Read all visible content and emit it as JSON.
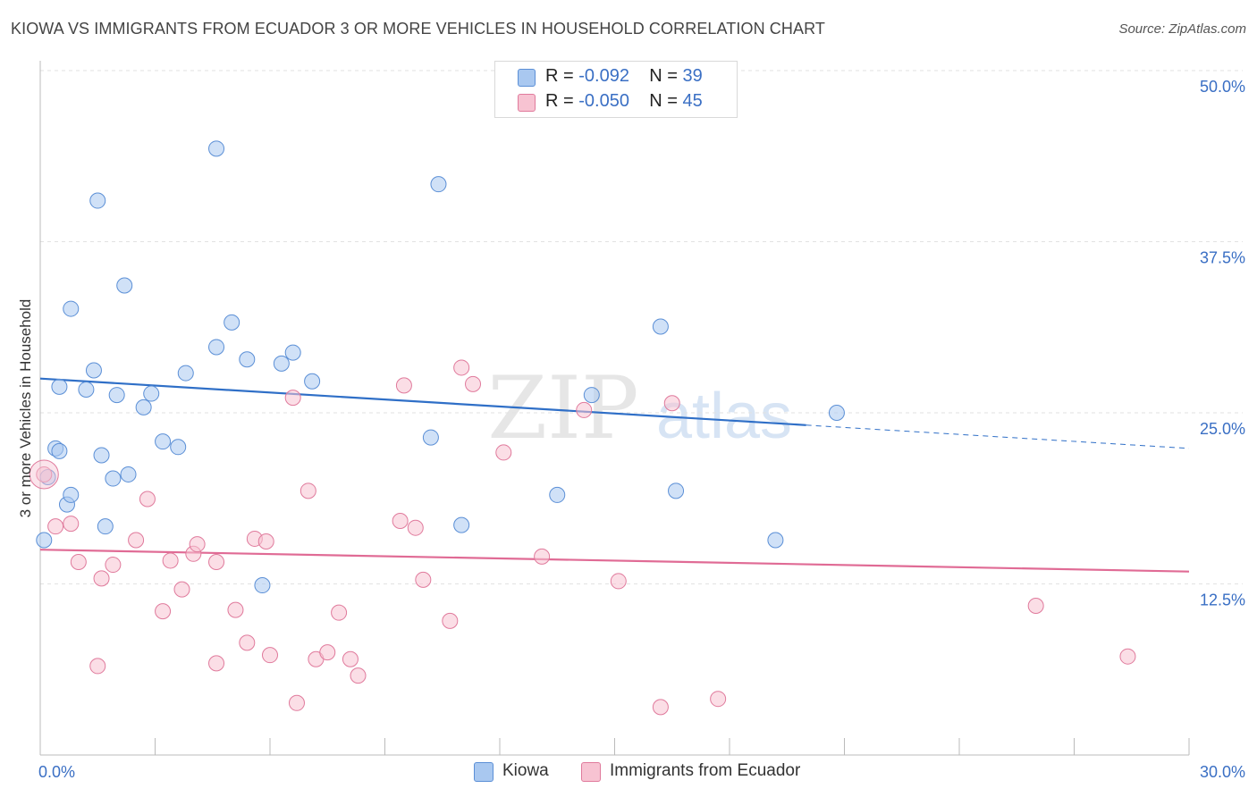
{
  "title": "KIOWA VS IMMIGRANTS FROM ECUADOR 3 OR MORE VEHICLES IN HOUSEHOLD CORRELATION CHART",
  "source": "Source: ZipAtlas.com",
  "watermark": {
    "zip": "ZIP",
    "atlas": "atlas"
  },
  "legend": {
    "rows": [
      {
        "r_label": "R =",
        "r_value": "-0.092",
        "n_label": "N =",
        "n_value": "39",
        "color": "#a9c8f0",
        "border": "#5b8fd6"
      },
      {
        "r_label": "R =",
        "r_value": "-0.050",
        "n_label": "N =",
        "n_value": "45",
        "color": "#f7c3d2",
        "border": "#e07a9c"
      }
    ]
  },
  "bottom_legend": [
    {
      "label": "Kiowa",
      "color": "#a9c8f0",
      "border": "#5b8fd6"
    },
    {
      "label": "Immigrants from Ecuador",
      "color": "#f7c3d2",
      "border": "#e07a9c"
    }
  ],
  "chart_data": {
    "type": "scatter",
    "ylabel": "3 or more Vehicles in Household",
    "xlim": [
      0,
      30
    ],
    "ylim": [
      0,
      50
    ],
    "x_tick_labels": [
      {
        "value": 0,
        "label": "0.0%"
      },
      {
        "value": 30,
        "label": "30.0%"
      }
    ],
    "y_tick_labels": [
      {
        "value": 12.5,
        "label": "12.5%"
      },
      {
        "value": 25,
        "label": "25.0%"
      },
      {
        "value": 37.5,
        "label": "37.5%"
      },
      {
        "value": 50,
        "label": "50.0%"
      }
    ],
    "grid": true,
    "series": [
      {
        "name": "Kiowa",
        "color": "#a9c8f0",
        "border": "#5b8fd6",
        "line_color": "#2f6fc7",
        "trend": {
          "x0": 0,
          "y0": 27.5,
          "x1": 20,
          "y1": 24.1,
          "dash_to_x": 30,
          "dash_to_y": 22.4
        },
        "points": [
          [
            0.1,
            15.7
          ],
          [
            0.2,
            20.3
          ],
          [
            0.4,
            22.4
          ],
          [
            0.5,
            22.2
          ],
          [
            0.5,
            26.9
          ],
          [
            0.7,
            18.3
          ],
          [
            0.8,
            19.0
          ],
          [
            0.8,
            32.6
          ],
          [
            1.2,
            26.7
          ],
          [
            1.4,
            28.1
          ],
          [
            1.5,
            40.5
          ],
          [
            1.6,
            21.9
          ],
          [
            1.7,
            16.7
          ],
          [
            1.9,
            20.2
          ],
          [
            2.0,
            26.3
          ],
          [
            2.2,
            34.3
          ],
          [
            2.3,
            20.5
          ],
          [
            2.7,
            25.4
          ],
          [
            2.9,
            26.4
          ],
          [
            3.2,
            22.9
          ],
          [
            3.6,
            22.5
          ],
          [
            3.8,
            27.9
          ],
          [
            4.6,
            44.3
          ],
          [
            4.6,
            29.8
          ],
          [
            5.0,
            31.6
          ],
          [
            5.4,
            28.9
          ],
          [
            5.8,
            12.4
          ],
          [
            6.3,
            28.6
          ],
          [
            6.6,
            29.4
          ],
          [
            7.1,
            27.3
          ],
          [
            10.2,
            23.2
          ],
          [
            10.4,
            41.7
          ],
          [
            11.0,
            16.8
          ],
          [
            13.5,
            19.0
          ],
          [
            14.4,
            26.3
          ],
          [
            16.2,
            31.3
          ],
          [
            16.6,
            19.3
          ],
          [
            19.2,
            15.7
          ],
          [
            20.8,
            25.0
          ]
        ]
      },
      {
        "name": "Immigrants from Ecuador",
        "color": "#f7c3d2",
        "border": "#e07a9c",
        "line_color": "#e06b95",
        "trend": {
          "x0": 0,
          "y0": 15.0,
          "x1": 30,
          "y1": 13.4
        },
        "points": [
          [
            0.1,
            20.5
          ],
          [
            0.4,
            16.7
          ],
          [
            0.8,
            16.9
          ],
          [
            1.0,
            14.1
          ],
          [
            1.5,
            6.5
          ],
          [
            1.6,
            12.9
          ],
          [
            1.9,
            13.9
          ],
          [
            2.5,
            15.7
          ],
          [
            2.8,
            18.7
          ],
          [
            3.2,
            10.5
          ],
          [
            3.4,
            14.2
          ],
          [
            3.7,
            12.1
          ],
          [
            4.0,
            14.7
          ],
          [
            4.1,
            15.4
          ],
          [
            4.6,
            6.7
          ],
          [
            4.6,
            14.1
          ],
          [
            5.1,
            10.6
          ],
          [
            5.4,
            8.2
          ],
          [
            5.6,
            15.8
          ],
          [
            5.9,
            15.6
          ],
          [
            6.0,
            7.3
          ],
          [
            6.6,
            26.1
          ],
          [
            6.7,
            3.8
          ],
          [
            7.0,
            19.3
          ],
          [
            7.2,
            7.0
          ],
          [
            7.5,
            7.5
          ],
          [
            7.8,
            10.4
          ],
          [
            8.1,
            7.0
          ],
          [
            8.3,
            5.8
          ],
          [
            9.4,
            17.1
          ],
          [
            9.5,
            27.0
          ],
          [
            9.8,
            16.6
          ],
          [
            10.0,
            12.8
          ],
          [
            10.7,
            9.8
          ],
          [
            11.0,
            28.3
          ],
          [
            11.3,
            27.1
          ],
          [
            12.1,
            22.1
          ],
          [
            13.1,
            14.5
          ],
          [
            14.2,
            25.2
          ],
          [
            15.1,
            12.7
          ],
          [
            16.2,
            3.5
          ],
          [
            16.5,
            25.7
          ],
          [
            17.7,
            4.1
          ],
          [
            26.0,
            10.9
          ],
          [
            28.4,
            7.2
          ]
        ]
      }
    ]
  }
}
